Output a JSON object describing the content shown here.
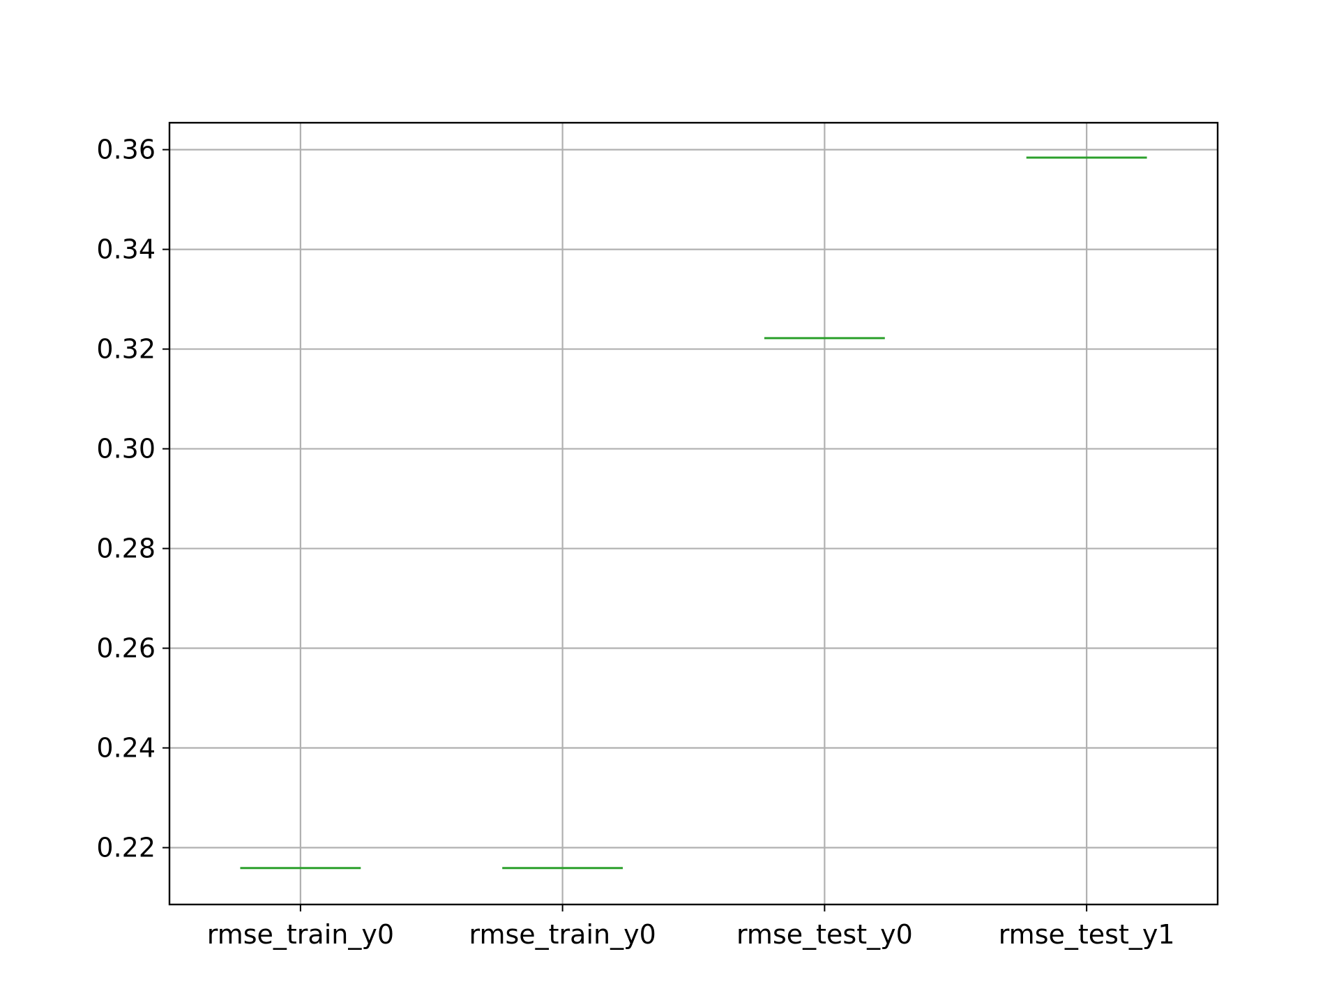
{
  "chart_data": {
    "type": "box",
    "categories": [
      "rmse_train_y0",
      "rmse_train_y0",
      "rmse_test_y0",
      "rmse_test_y1"
    ],
    "values": [
      0.2159,
      0.2159,
      0.3222,
      0.3584
    ],
    "yticks": [
      "0.22",
      "0.24",
      "0.26",
      "0.28",
      "0.30",
      "0.32",
      "0.34",
      "0.36"
    ],
    "ytick_values": [
      0.22,
      0.24,
      0.26,
      0.28,
      0.3,
      0.32,
      0.34,
      0.36
    ],
    "ylim": [
      0.2086,
      0.3654
    ],
    "grid": true,
    "title": "",
    "xlabel": "",
    "ylabel": "",
    "colors": {
      "median": "#2ca02c",
      "grid": "#b0b0b0",
      "axes": "#000000"
    }
  }
}
